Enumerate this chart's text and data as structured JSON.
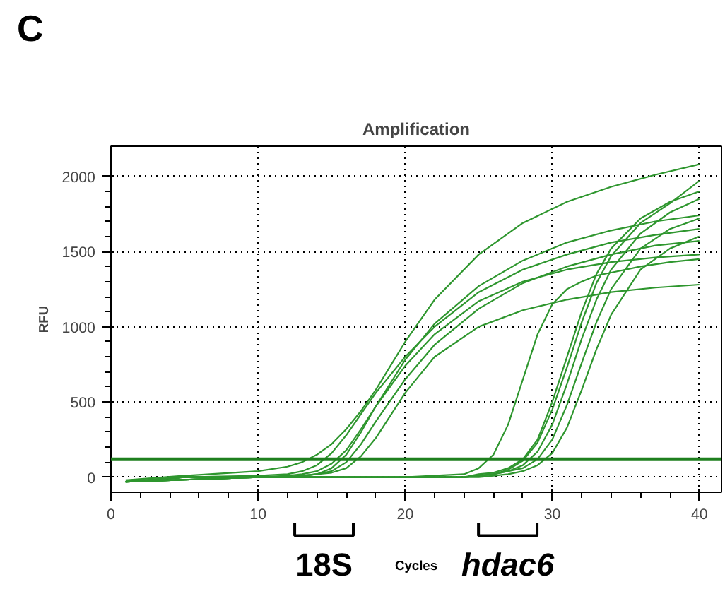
{
  "chart_data": {
    "type": "line",
    "title": "Amplification",
    "xlabel": "Cycles",
    "ylabel": "RFU",
    "annotations": [
      "C",
      "18S",
      "hdac6"
    ],
    "xlim": [
      0,
      41.5
    ],
    "ylim": [
      -100,
      2200
    ],
    "xticks": [
      0,
      10,
      20,
      30,
      40
    ],
    "yticks": [
      0,
      500,
      1000,
      1500,
      2000
    ],
    "grid": true,
    "marker": "none",
    "line_style": "solid",
    "ref_lines": [
      {
        "axis": "y",
        "value": 120,
        "label": null,
        "color": "#1e7f1e"
      }
    ],
    "series": [
      {
        "color": "#2e962e",
        "x": [
          1,
          5,
          10,
          12,
          13,
          14,
          15,
          16,
          17,
          18,
          20,
          22,
          25,
          28,
          31,
          34,
          37,
          40
        ],
        "values": [
          -20,
          10,
          40,
          70,
          100,
          150,
          220,
          320,
          440,
          580,
          900,
          1180,
          1480,
          1690,
          1830,
          1930,
          2010,
          2080
        ]
      },
      {
        "color": "#2e962e",
        "x": [
          1,
          5,
          10,
          12,
          13,
          14,
          15,
          16,
          17,
          18,
          20,
          22,
          25,
          28,
          31,
          34,
          37,
          40
        ],
        "values": [
          -30,
          0,
          10,
          20,
          40,
          80,
          160,
          280,
          420,
          560,
          800,
          1000,
          1230,
          1380,
          1480,
          1560,
          1610,
          1650
        ]
      },
      {
        "color": "#2e962e",
        "x": [
          1,
          5,
          10,
          12,
          13,
          14,
          15,
          16,
          17,
          18,
          20,
          22,
          25,
          28,
          31,
          34,
          37,
          40
        ],
        "values": [
          -30,
          0,
          0,
          10,
          20,
          40,
          90,
          180,
          320,
          470,
          740,
          950,
          1170,
          1300,
          1380,
          1430,
          1460,
          1480
        ]
      },
      {
        "color": "#2e962e",
        "x": [
          1,
          5,
          10,
          12,
          13,
          14,
          15,
          16,
          17,
          18,
          20,
          22,
          25,
          28,
          31,
          34,
          37,
          40
        ],
        "values": [
          -30,
          0,
          0,
          0,
          10,
          20,
          40,
          100,
          220,
          370,
          650,
          880,
          1120,
          1290,
          1400,
          1480,
          1540,
          1570
        ]
      },
      {
        "color": "#2e962e",
        "x": [
          1,
          5,
          10,
          12,
          13,
          14,
          15,
          16,
          17,
          18,
          20,
          22,
          25,
          28,
          31,
          34,
          37,
          40
        ],
        "values": [
          -30,
          0,
          0,
          0,
          10,
          20,
          30,
          60,
          140,
          260,
          560,
          800,
          1000,
          1110,
          1180,
          1230,
          1260,
          1280
        ]
      },
      {
        "color": "#2e962e",
        "x": [
          1,
          5,
          10,
          12,
          13,
          14,
          15,
          16,
          17,
          18,
          20,
          22,
          25,
          28,
          31,
          34,
          37,
          40
        ],
        "values": [
          -30,
          0,
          0,
          0,
          10,
          20,
          60,
          150,
          300,
          470,
          780,
          1020,
          1270,
          1440,
          1560,
          1640,
          1700,
          1740
        ]
      },
      {
        "color": "#2e962e",
        "x": [
          1,
          10,
          20,
          24,
          25,
          26,
          27,
          28,
          29,
          30,
          31,
          32,
          33,
          34,
          36,
          38,
          40
        ],
        "values": [
          -30,
          0,
          0,
          20,
          60,
          150,
          350,
          650,
          950,
          1150,
          1250,
          1300,
          1340,
          1360,
          1400,
          1430,
          1450
        ]
      },
      {
        "color": "#2e962e",
        "x": [
          1,
          10,
          20,
          24,
          25,
          26,
          27,
          28,
          29,
          30,
          31,
          32,
          33,
          34,
          36,
          38,
          40
        ],
        "values": [
          -30,
          0,
          0,
          0,
          20,
          30,
          60,
          120,
          250,
          500,
          800,
          1100,
          1350,
          1520,
          1720,
          1830,
          1900
        ]
      },
      {
        "color": "#2e962e",
        "x": [
          1,
          10,
          20,
          24,
          25,
          26,
          27,
          28,
          29,
          30,
          31,
          32,
          33,
          34,
          36,
          38,
          40
        ],
        "values": [
          -30,
          0,
          0,
          0,
          10,
          20,
          40,
          80,
          170,
          350,
          620,
          920,
          1180,
          1380,
          1620,
          1760,
          1850
        ]
      },
      {
        "color": "#2e962e",
        "x": [
          1,
          10,
          20,
          24,
          25,
          26,
          27,
          28,
          29,
          30,
          31,
          32,
          33,
          34,
          36,
          38,
          40
        ],
        "values": [
          -30,
          0,
          0,
          0,
          10,
          20,
          40,
          60,
          120,
          250,
          480,
          760,
          1030,
          1250,
          1520,
          1650,
          1720
        ]
      },
      {
        "color": "#2e962e",
        "x": [
          1,
          10,
          20,
          24,
          25,
          26,
          27,
          28,
          29,
          30,
          31,
          32,
          33,
          34,
          36,
          38,
          40
        ],
        "values": [
          -30,
          0,
          0,
          0,
          0,
          10,
          20,
          40,
          80,
          160,
          330,
          580,
          850,
          1080,
          1380,
          1520,
          1600
        ]
      },
      {
        "color": "#2e962e",
        "x": [
          1,
          10,
          20,
          24,
          25,
          26,
          27,
          28,
          29,
          30,
          31,
          32,
          33,
          34,
          36,
          38,
          40
        ],
        "values": [
          -30,
          0,
          0,
          0,
          10,
          20,
          50,
          110,
          230,
          450,
          730,
          1030,
          1290,
          1470,
          1690,
          1820,
          1970
        ]
      }
    ]
  }
}
